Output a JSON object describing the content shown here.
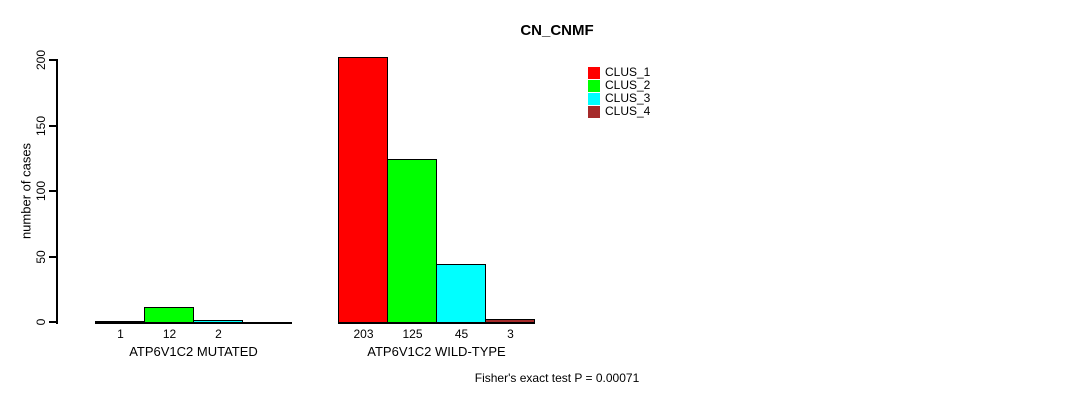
{
  "chart_data": {
    "type": "bar",
    "title": "CN_CNMF",
    "ylabel": "number of cases",
    "xlabel": "",
    "ylim": [
      0,
      200
    ],
    "yticks": [
      0,
      50,
      100,
      150,
      200
    ],
    "ytick_labels": [
      "0",
      "50",
      "100",
      "150",
      "200"
    ],
    "categories": [
      "ATP6V1C2 MUTATED",
      "ATP6V1C2 WILD-TYPE"
    ],
    "series": [
      {
        "name": "CLUS_1",
        "color": "#ff0000",
        "values": [
          1,
          203
        ]
      },
      {
        "name": "CLUS_2",
        "color": "#00ff00",
        "values": [
          12,
          125
        ]
      },
      {
        "name": "CLUS_3",
        "color": "#00ffff",
        "values": [
          2,
          45
        ]
      },
      {
        "name": "CLUS_4",
        "color": "#a52a2a",
        "values": [
          0,
          3
        ]
      }
    ],
    "bar_value_labels": [
      [
        "1",
        "12",
        "2",
        ""
      ],
      [
        "203",
        "125",
        "45",
        "3"
      ]
    ],
    "legend_position": "top-right",
    "grid": false,
    "annotation": "Fisher's exact test P = 0.00071"
  }
}
